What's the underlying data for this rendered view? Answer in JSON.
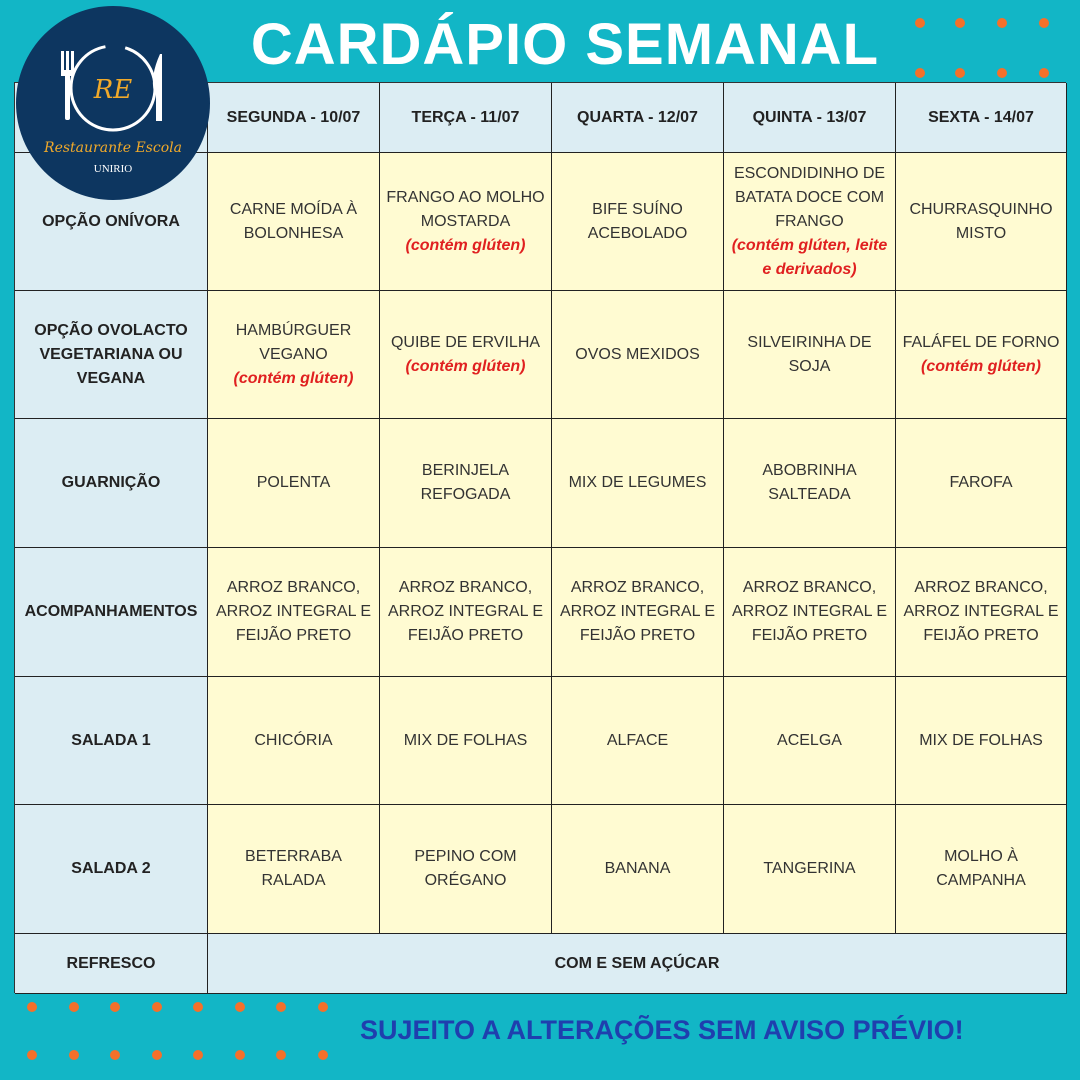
{
  "title": "CARDÁPIO SEMANAL",
  "logo": {
    "initials": "RE",
    "name": "Restaurante Escola",
    "institution": "UNIRIO"
  },
  "colors": {
    "background": "#12b6c6",
    "accent_dots": "#f4702a",
    "header_cells": "#dcedf3",
    "menu_cells": "#fffbd2",
    "allergen_note": "#e02020",
    "footer_text": "#1f3fae",
    "logo_bg": "#0d3660"
  },
  "days": [
    "SEGUNDA - 10/07",
    "TERÇA - 11/07",
    "QUARTA - 12/07",
    "QUINTA - 13/07",
    "SEXTA - 14/07"
  ],
  "rows": [
    {
      "label": "OPÇÃO ONÍVORA",
      "cells": [
        {
          "text": "CARNE MOÍDA À BOLONHESA"
        },
        {
          "text": "FRANGO AO MOLHO MOSTARDA",
          "note": "(contém glúten)"
        },
        {
          "text": "BIFE SUÍNO ACEBOLADO"
        },
        {
          "text": "ESCONDIDINHO DE BATATA DOCE COM FRANGO",
          "note": "(contém glúten, leite e derivados)"
        },
        {
          "text": "CHURRASQUINHO MISTO"
        }
      ]
    },
    {
      "label": "OPÇÃO OVOLACTO VEGETARIANA OU VEGANA",
      "cells": [
        {
          "text": "HAMBÚRGUER VEGANO",
          "note": "(contém glúten)"
        },
        {
          "text": "QUIBE DE ERVILHA",
          "note": "(contém glúten)"
        },
        {
          "text": "OVOS MEXIDOS"
        },
        {
          "text": "SILVEIRINHA DE SOJA"
        },
        {
          "text": "FALÁFEL DE FORNO",
          "note": "(contém glúten)"
        }
      ]
    },
    {
      "label": "GUARNIÇÃO",
      "cells": [
        {
          "text": "POLENTA"
        },
        {
          "text": "BERINJELA REFOGADA"
        },
        {
          "text": "MIX DE LEGUMES"
        },
        {
          "text": "ABOBRINHA SALTEADA"
        },
        {
          "text": "FAROFA"
        }
      ]
    },
    {
      "label": "ACOMPANHAMENTOS",
      "cells": [
        {
          "text": "ARROZ BRANCO, ARROZ INTEGRAL E FEIJÃO PRETO"
        },
        {
          "text": "ARROZ BRANCO, ARROZ INTEGRAL E FEIJÃO PRETO"
        },
        {
          "text": "ARROZ BRANCO, ARROZ INTEGRAL E FEIJÃO PRETO"
        },
        {
          "text": "ARROZ BRANCO, ARROZ INTEGRAL E FEIJÃO PRETO"
        },
        {
          "text": "ARROZ BRANCO, ARROZ INTEGRAL E FEIJÃO PRETO"
        }
      ]
    },
    {
      "label": "SALADA 1",
      "cells": [
        {
          "text": "CHICÓRIA"
        },
        {
          "text": "MIX DE FOLHAS"
        },
        {
          "text": "ALFACE"
        },
        {
          "text": "ACELGA"
        },
        {
          "text": "MIX DE FOLHAS"
        }
      ]
    },
    {
      "label": "SALADA 2",
      "cells": [
        {
          "text": "BETERRABA RALADA"
        },
        {
          "text": "PEPINO COM ORÉGANO"
        },
        {
          "text": "BANANA"
        },
        {
          "text": "TANGERINA"
        },
        {
          "text": "MOLHO À CAMPANHA"
        }
      ]
    }
  ],
  "refresco": {
    "label": "REFRESCO",
    "value": "COM E SEM AÇÚCAR"
  },
  "footer": "SUJEITO A ALTERAÇÕES SEM AVISO PRÉVIO!"
}
